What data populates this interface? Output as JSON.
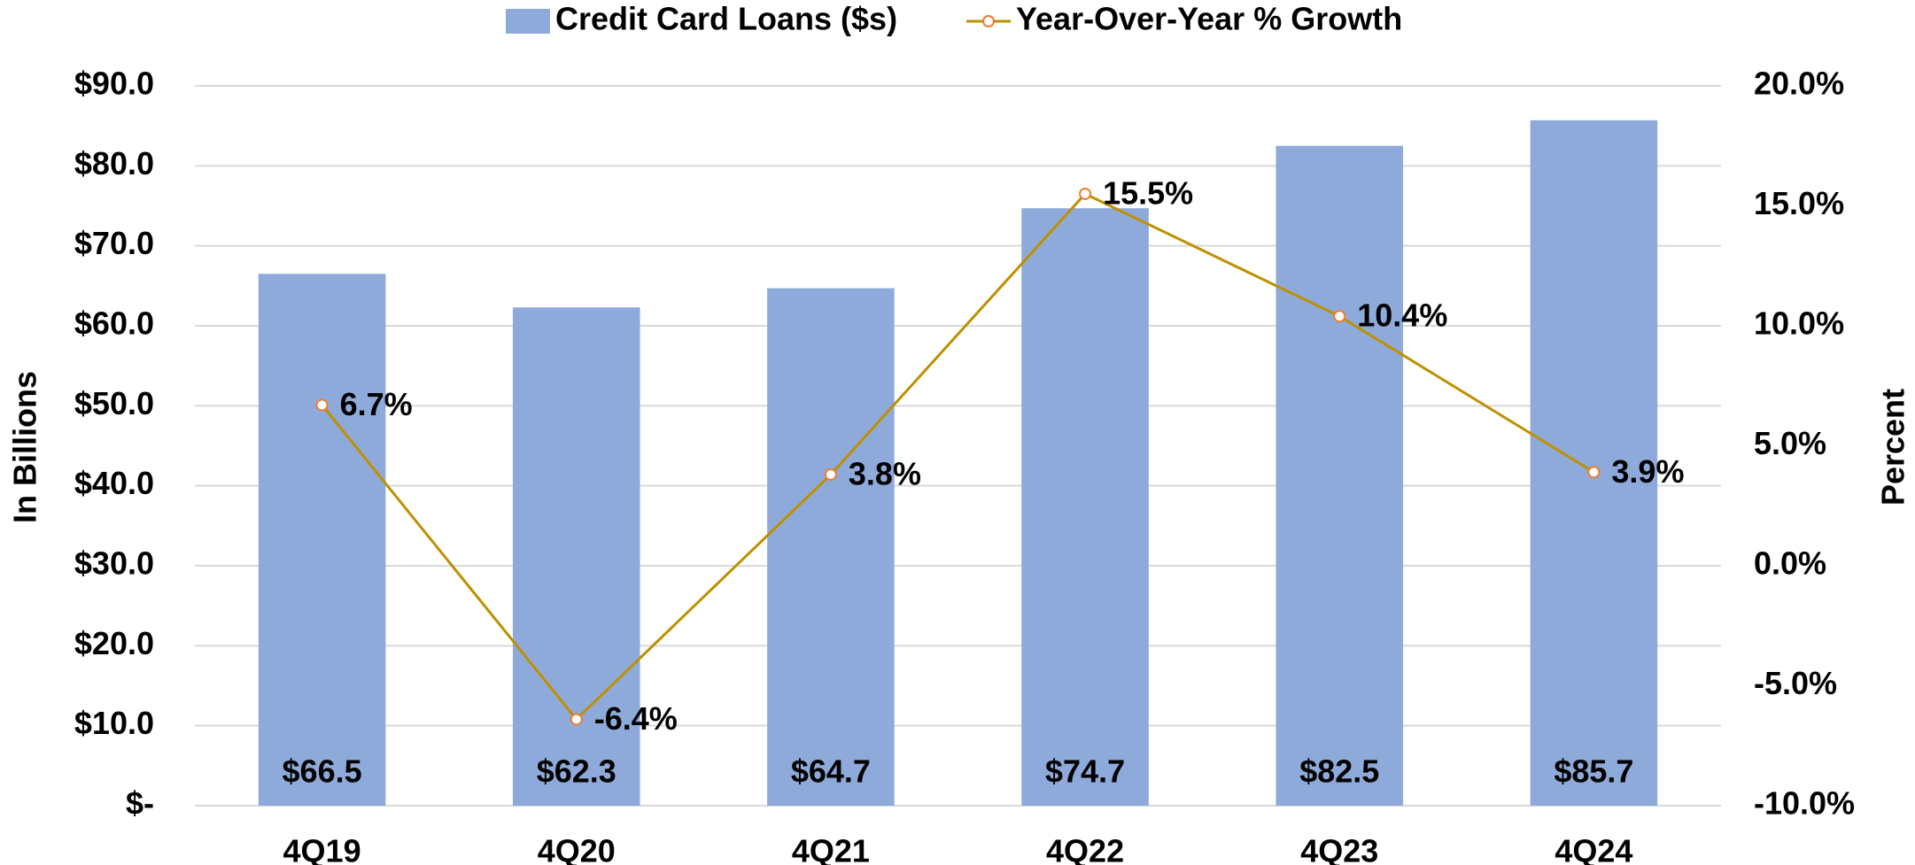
{
  "chart_data": {
    "type": "bar",
    "categories": [
      "4Q19",
      "4Q20",
      "4Q21",
      "4Q22",
      "4Q23",
      "4Q24"
    ],
    "series": [
      {
        "name": "Credit Card Loans ($s)",
        "type": "bar",
        "color": "#8eaadb",
        "values": [
          66.5,
          62.3,
          64.7,
          74.7,
          82.5,
          85.7
        ],
        "value_labels": [
          "$66.5",
          "$62.3",
          "$64.7",
          "$74.7",
          "$82.5",
          "$85.7"
        ]
      },
      {
        "name": "Year-Over-Year % Growth",
        "type": "line",
        "axis": "y2",
        "color": "#bf9000",
        "marker_color": "#ed7d31",
        "values": [
          6.7,
          -6.4,
          3.8,
          15.5,
          10.4,
          3.9
        ],
        "value_labels": [
          "6.7%",
          "-6.4%",
          "3.8%",
          "15.5%",
          "10.4%",
          "3.9%"
        ]
      }
    ],
    "y_label": "In Billions",
    "y2_label": "Percent",
    "ylim": [
      0,
      90
    ],
    "yticks": [
      {
        "value": 0,
        "label": "$-"
      },
      {
        "value": 10,
        "label": "$10.0"
      },
      {
        "value": 20,
        "label": "$20.0"
      },
      {
        "value": 30,
        "label": "$30.0"
      },
      {
        "value": 40,
        "label": "$40.0"
      },
      {
        "value": 50,
        "label": "$50.0"
      },
      {
        "value": 60,
        "label": "$60.0"
      },
      {
        "value": 70,
        "label": "$70.0"
      },
      {
        "value": 80,
        "label": "$80.0"
      },
      {
        "value": 90,
        "label": "$90.0"
      }
    ],
    "y2lim": [
      -10,
      20
    ],
    "y2ticks": [
      {
        "value": -10,
        "label": "-10.0%"
      },
      {
        "value": -5,
        "label": "-5.0%"
      },
      {
        "value": 0,
        "label": "0.0%"
      },
      {
        "value": 5,
        "label": "5.0%"
      },
      {
        "value": 10,
        "label": "10.0%"
      },
      {
        "value": 15,
        "label": "15.0%"
      },
      {
        "value": 20,
        "label": "20.0%"
      }
    ],
    "grid": true,
    "legend": "top"
  }
}
